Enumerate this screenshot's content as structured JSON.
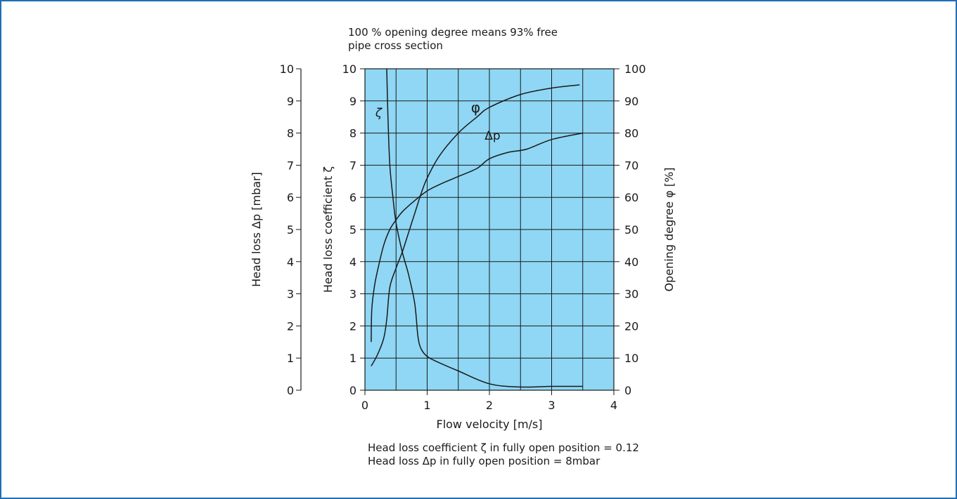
{
  "chart_data": {
    "type": "line",
    "top_note": [
      "100 % opening degree means 93% free",
      "pipe cross section"
    ],
    "xlabel": "Flow velocity [m/s]",
    "xlim": [
      0,
      4
    ],
    "x_ticks": [
      0,
      1,
      2,
      3,
      4
    ],
    "grid": true,
    "grid_x_step": 0.5,
    "plot_background": "#8fd7f4",
    "axes": {
      "left_outer": {
        "label": "Head loss Δp [mbar]",
        "range": [
          0,
          10
        ],
        "ticks": [
          0,
          1,
          2,
          3,
          4,
          5,
          6,
          7,
          8,
          9,
          10
        ]
      },
      "left_inner": {
        "label": "Head loss coefficient ζ",
        "range": [
          0,
          10
        ],
        "ticks": [
          0,
          1,
          2,
          3,
          4,
          5,
          6,
          7,
          8,
          9,
          10
        ]
      },
      "right": {
        "label": "Opening degree φ [%]",
        "range": [
          0,
          100
        ],
        "ticks": [
          0,
          10,
          20,
          30,
          40,
          50,
          60,
          70,
          80,
          90,
          100
        ]
      }
    },
    "series": [
      {
        "name": "ζ",
        "axis": "left_inner",
        "color": "#1a1a1a",
        "label_at": [
          0.22,
          8.5
        ],
        "points": [
          [
            0.35,
            10
          ],
          [
            0.37,
            8.5
          ],
          [
            0.4,
            7.0
          ],
          [
            0.45,
            6.0
          ],
          [
            0.5,
            5.2
          ],
          [
            0.6,
            4.3
          ],
          [
            0.7,
            3.6
          ],
          [
            0.8,
            2.7
          ],
          [
            0.85,
            1.7
          ],
          [
            0.9,
            1.3
          ],
          [
            1.0,
            1.05
          ],
          [
            1.2,
            0.85
          ],
          [
            1.5,
            0.6
          ],
          [
            2.0,
            0.2
          ],
          [
            2.5,
            0.1
          ],
          [
            3.0,
            0.12
          ],
          [
            3.5,
            0.12
          ]
        ]
      },
      {
        "name": "φ",
        "axis": "right",
        "color": "#1a1a1a",
        "label_at": [
          1.78,
          86.5
        ],
        "points": [
          [
            0.1,
            15
          ],
          [
            0.11,
            25
          ],
          [
            0.15,
            32
          ],
          [
            0.2,
            37
          ],
          [
            0.3,
            45
          ],
          [
            0.4,
            50
          ],
          [
            0.5,
            53
          ],
          [
            0.6,
            55.5
          ],
          [
            0.8,
            59
          ],
          [
            1.0,
            62
          ],
          [
            1.2,
            64
          ],
          [
            1.5,
            66.5
          ],
          [
            1.8,
            69
          ],
          [
            2.0,
            72
          ],
          [
            2.3,
            74
          ],
          [
            2.6,
            75
          ],
          [
            3.0,
            78
          ],
          [
            3.5,
            80
          ]
        ]
      },
      {
        "name": "Δp",
        "axis": "left_outer",
        "color": "#1a1a1a",
        "label_at": [
          2.05,
          7.8
        ],
        "points": [
          [
            0.1,
            0.75
          ],
          [
            0.2,
            1.1
          ],
          [
            0.3,
            1.6
          ],
          [
            0.35,
            2.2
          ],
          [
            0.4,
            3.2
          ],
          [
            0.5,
            3.8
          ],
          [
            0.6,
            4.3
          ],
          [
            0.7,
            4.9
          ],
          [
            0.8,
            5.5
          ],
          [
            0.9,
            6.1
          ],
          [
            1.0,
            6.6
          ],
          [
            1.2,
            7.3
          ],
          [
            1.5,
            8.0
          ],
          [
            1.8,
            8.5
          ],
          [
            2.0,
            8.8
          ],
          [
            2.5,
            9.2
          ],
          [
            3.0,
            9.4
          ],
          [
            3.45,
            9.5
          ]
        ]
      }
    ],
    "bottom_notes": [
      "Head loss coefficient ζ in fully open position = 0.12",
      "Head loss Δp in fully open position = 8mbar"
    ]
  }
}
